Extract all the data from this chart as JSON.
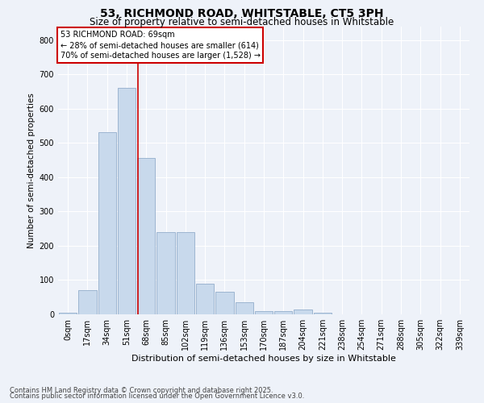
{
  "title1": "53, RICHMOND ROAD, WHITSTABLE, CT5 3PH",
  "title2": "Size of property relative to semi-detached houses in Whitstable",
  "xlabel": "Distribution of semi-detached houses by size in Whitstable",
  "ylabel": "Number of semi-detached properties",
  "bar_labels": [
    "0sqm",
    "17sqm",
    "34sqm",
    "51sqm",
    "68sqm",
    "85sqm",
    "102sqm",
    "119sqm",
    "136sqm",
    "153sqm",
    "170sqm",
    "187sqm",
    "204sqm",
    "221sqm",
    "238sqm",
    "254sqm",
    "271sqm",
    "288sqm",
    "305sqm",
    "322sqm",
    "339sqm"
  ],
  "bar_values": [
    5,
    70,
    530,
    660,
    455,
    240,
    240,
    90,
    65,
    35,
    10,
    10,
    15,
    5,
    0,
    0,
    0,
    0,
    0,
    0,
    0
  ],
  "bar_color": "#c8d9ec",
  "bar_edge_color": "#9db5d0",
  "vline_color": "#cc0000",
  "annotation_title": "53 RICHMOND ROAD: 69sqm",
  "annotation_line1": "← 28% of semi-detached houses are smaller (614)",
  "annotation_line2": "70% of semi-detached houses are larger (1,528) →",
  "annotation_box_color": "#cc0000",
  "ylim": [
    0,
    840
  ],
  "yticks": [
    0,
    100,
    200,
    300,
    400,
    500,
    600,
    700,
    800
  ],
  "footer1": "Contains HM Land Registry data © Crown copyright and database right 2025.",
  "footer2": "Contains public sector information licensed under the Open Government Licence v3.0.",
  "bg_color": "#eef2f9",
  "grid_color": "#ffffff",
  "title1_fontsize": 10,
  "title2_fontsize": 8.5,
  "ylabel_fontsize": 7.5,
  "xlabel_fontsize": 8,
  "tick_fontsize": 7,
  "ann_fontsize": 7,
  "footer_fontsize": 6
}
